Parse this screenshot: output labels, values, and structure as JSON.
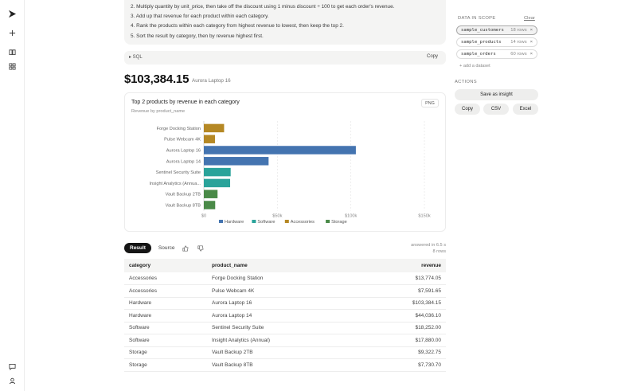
{
  "steps": [
    "2. Multiply quantity by unit_price, then take off the discount using 1 minus discount ÷ 100 to get each order's revenue.",
    "3. Add up that revenue for each product within each category.",
    "4. Rank the products within each category from highest revenue to lowest, then keep the top 2.",
    "5. Sort the result by category, then by revenue highest first."
  ],
  "sql": {
    "label": "▸  SQL",
    "copy": "Copy"
  },
  "headline": {
    "value": "$103,384.15",
    "caption": "Aurora Laptop 16"
  },
  "chart": {
    "png_label": "PNG",
    "legend_colors": {
      "Hardware": "#4474b0",
      "Software": "#2aa39a",
      "Accessories": "#b58824",
      "Storage": "#4a8a48"
    }
  },
  "chart_data": {
    "type": "bar",
    "orientation": "horizontal",
    "title": "Top 2 products by revenue in each category",
    "subtitle": "Revenue by product_name",
    "categories": [
      "Forge Docking Station",
      "Pulse Webcam 4K",
      "Aurora Laptop 16",
      "Aurora Laptop 14",
      "Sentinel Security Suite",
      "Insight Analytics (Annua...",
      "Vault Backup 2TB",
      "Vault Backup 8TB"
    ],
    "values": [
      13774.05,
      7591.65,
      103384.15,
      44036.1,
      18252.0,
      17880.0,
      9322.75,
      7730.7
    ],
    "bar_groups": [
      "Accessories",
      "Accessories",
      "Hardware",
      "Hardware",
      "Software",
      "Software",
      "Storage",
      "Storage"
    ],
    "x_ticks": [
      "$0",
      "$50k",
      "$100k",
      "$150k"
    ],
    "xlim": [
      0,
      150000
    ],
    "legend": [
      "Hardware",
      "Software",
      "Accessories",
      "Storage"
    ],
    "legend_position": "bottom",
    "grid": true
  },
  "tabs": {
    "result": "Result",
    "source": "Source"
  },
  "answered": {
    "time": "answered in 6.5 s",
    "rows": "8 rows"
  },
  "table": {
    "headers": [
      "category",
      "product_name",
      "revenue"
    ],
    "rows": [
      [
        "Accessories",
        "Forge Docking Station",
        "$13,774.05"
      ],
      [
        "Accessories",
        "Pulse Webcam 4K",
        "$7,591.65"
      ],
      [
        "Hardware",
        "Aurora Laptop 16",
        "$103,384.15"
      ],
      [
        "Hardware",
        "Aurora Laptop 14",
        "$44,036.10"
      ],
      [
        "Software",
        "Sentinel Security Suite",
        "$18,252.00"
      ],
      [
        "Software",
        "Insight Analytics (Annual)",
        "$17,880.00"
      ],
      [
        "Storage",
        "Vault Backup 2TB",
        "$9,322.75"
      ],
      [
        "Storage",
        "Vault Backup 8TB",
        "$7,730.70"
      ]
    ]
  },
  "right_panel": {
    "scope_title": "DATA IN SCOPE",
    "clear": "Clear",
    "datasets": [
      {
        "name": "sample_customers",
        "rows": "18 rows",
        "remove": "×"
      },
      {
        "name": "sample_products",
        "rows": "14 rows",
        "remove": "×"
      },
      {
        "name": "sample_orders",
        "rows": "60 rows",
        "remove": "×"
      }
    ],
    "add_dataset": "+ add a dataset",
    "actions_title": "ACTIONS",
    "save_insight": "Save as insight",
    "copy": "Copy",
    "csv": "CSV",
    "excel": "Excel"
  }
}
